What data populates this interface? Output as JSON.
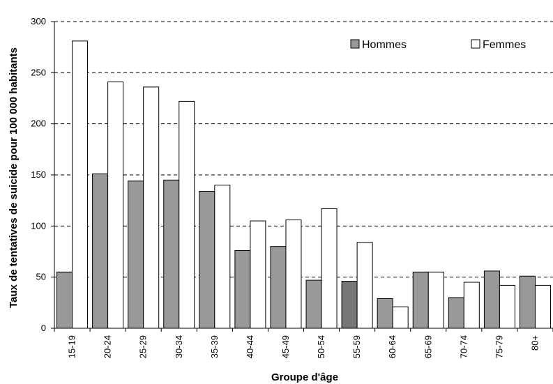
{
  "chart_data": {
    "type": "bar",
    "title": "",
    "xlabel": "Groupe d'âge",
    "ylabel": "Taux de tentatives de suicide pour 100 000 habitants",
    "categories": [
      "15-19",
      "20-24",
      "25-29",
      "30-34",
      "35-39",
      "40-44",
      "45-49",
      "50-54",
      "55-59",
      "60-64",
      "65-69",
      "70-74",
      "75-79",
      "80+"
    ],
    "series": [
      {
        "name": "Hommes",
        "color": "#999999",
        "values": [
          55,
          151,
          144,
          145,
          134,
          76,
          80,
          47,
          46,
          29,
          55,
          30,
          56,
          51
        ]
      },
      {
        "name": "Femmes",
        "color": "#ffffff",
        "values": [
          281,
          241,
          236,
          222,
          140,
          105,
          106,
          117,
          84,
          21,
          55,
          45,
          42,
          42
        ]
      }
    ],
    "ylim": [
      0,
      300
    ],
    "yticks": [
      "0",
      "50",
      "100",
      "150",
      "200",
      "250",
      "300"
    ],
    "grid": "horizontal-dashed",
    "legend_position": "top-right",
    "special_bar_colors": {
      "Hommes:55-59": "#777777"
    }
  }
}
